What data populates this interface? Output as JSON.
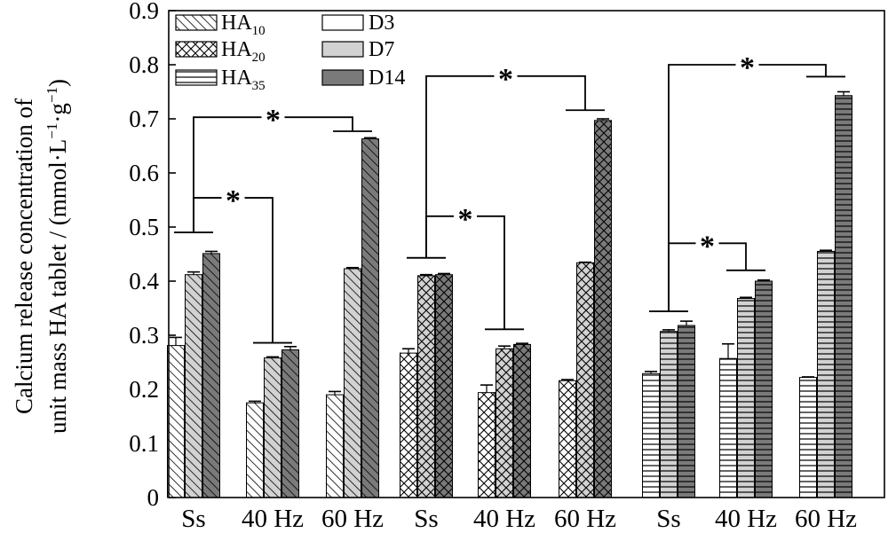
{
  "chart_data": {
    "type": "bar",
    "ylabel_line1": "Calcium release concentration of",
    "ylabel_line2_prefix": "unit mass HA tablet / (mmol·L",
    "ylabel_sup1": "−1",
    "ylabel_mid": "·g",
    "ylabel_sup2": "−1",
    "ylabel_suffix": ")",
    "ylim": [
      0,
      0.9
    ],
    "yticks": [
      "0",
      "0.1",
      "0.2",
      "0.3",
      "0.4",
      "0.5",
      "0.6",
      "0.7",
      "0.8",
      "0.9"
    ],
    "ytick_values": [
      0,
      0.1,
      0.2,
      0.3,
      0.4,
      0.5,
      0.6,
      0.7,
      0.8,
      0.9
    ],
    "categories": [
      "Ss",
      "40 Hz",
      "60 Hz",
      "Ss",
      "40 Hz",
      "60 Hz",
      "Ss",
      "40 Hz",
      "60 Hz"
    ],
    "material_legend": [
      {
        "base": "HA",
        "sub": "10",
        "pattern": "diag"
      },
      {
        "base": "HA",
        "sub": "20",
        "pattern": "cross"
      },
      {
        "base": "HA",
        "sub": "35",
        "pattern": "horiz"
      }
    ],
    "day_legend": [
      {
        "label": "D3",
        "color": "#ffffff"
      },
      {
        "label": "D7",
        "color": "#d2d2d2"
      },
      {
        "label": "D14",
        "color": "#7a7a7a"
      }
    ],
    "series_days": [
      "D3",
      "D7",
      "D14"
    ],
    "groups": [
      {
        "material": "HA10",
        "condition": "Ss",
        "values": [
          0.281,
          0.412,
          0.451
        ],
        "errors": [
          0.015,
          0.005,
          0.004
        ]
      },
      {
        "material": "HA10",
        "condition": "40 Hz",
        "values": [
          0.175,
          0.258,
          0.273
        ],
        "errors": [
          0.003,
          0.002,
          0.006
        ]
      },
      {
        "material": "HA10",
        "condition": "60 Hz",
        "values": [
          0.19,
          0.423,
          0.663
        ],
        "errors": [
          0.006,
          0.002,
          0.002
        ]
      },
      {
        "material": "HA20",
        "condition": "Ss",
        "values": [
          0.267,
          0.41,
          0.412
        ],
        "errors": [
          0.008,
          0.002,
          0.002
        ]
      },
      {
        "material": "HA20",
        "condition": "40 Hz",
        "values": [
          0.194,
          0.275,
          0.283
        ],
        "errors": [
          0.014,
          0.005,
          0.002
        ]
      },
      {
        "material": "HA20",
        "condition": "60 Hz",
        "values": [
          0.216,
          0.434,
          0.697
        ],
        "errors": [
          0.002,
          0.001,
          0.003
        ]
      },
      {
        "material": "HA35",
        "condition": "Ss",
        "values": [
          0.229,
          0.307,
          0.318
        ],
        "errors": [
          0.004,
          0.003,
          0.008
        ]
      },
      {
        "material": "HA35",
        "condition": "40 Hz",
        "values": [
          0.257,
          0.368,
          0.4
        ],
        "errors": [
          0.027,
          0.002,
          0.002
        ]
      },
      {
        "material": "HA35",
        "condition": "60 Hz",
        "values": [
          0.222,
          0.455,
          0.743
        ],
        "errors": [
          0.001,
          0.002,
          0.007
        ]
      }
    ],
    "significance": [
      {
        "from_group": 0,
        "to_group": 2,
        "from_level": 0.49,
        "to_level": 0.677,
        "top_level": 0.703,
        "label": "*"
      },
      {
        "from_group": 0,
        "to_group": 1,
        "from_level": 0.49,
        "to_level": 0.286,
        "top_level": 0.554,
        "label": "*"
      },
      {
        "from_group": 3,
        "to_group": 5,
        "from_level": 0.443,
        "to_level": 0.716,
        "top_level": 0.779,
        "label": "*"
      },
      {
        "from_group": 3,
        "to_group": 4,
        "from_level": 0.443,
        "to_level": 0.311,
        "top_level": 0.52,
        "label": "*"
      },
      {
        "from_group": 6,
        "to_group": 8,
        "from_level": 0.344,
        "to_level": 0.778,
        "top_level": 0.8,
        "label": "*"
      },
      {
        "from_group": 6,
        "to_group": 7,
        "from_level": 0.344,
        "to_level": 0.42,
        "top_level": 0.47,
        "label": "*"
      }
    ],
    "grid": false,
    "legend_position": "top-left"
  }
}
